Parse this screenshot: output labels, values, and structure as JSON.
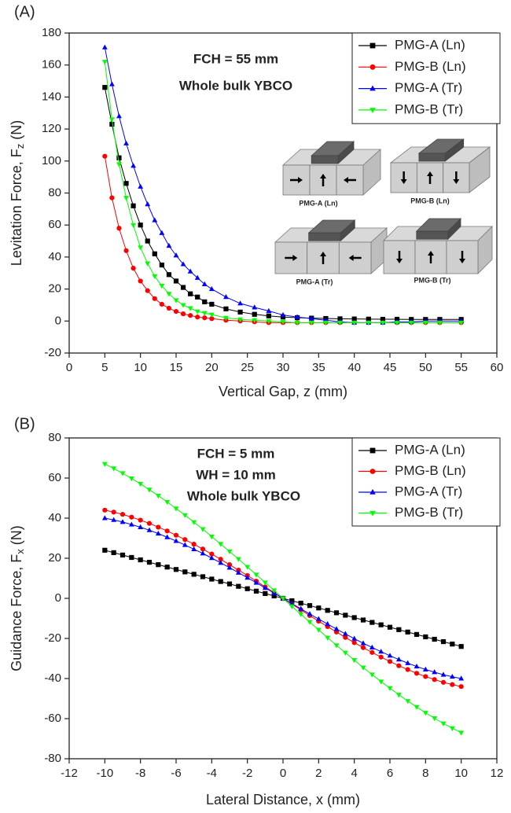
{
  "chart_data": [
    {
      "type": "line",
      "panel_label": "(A)",
      "xlabel": "Vertical Gap, z (mm)",
      "ylabel": {
        "text": "Levitation Force, F",
        "subscript": "z",
        "suffix": " (N)"
      },
      "xlim": [
        0,
        60
      ],
      "xticks": [
        0,
        5,
        10,
        15,
        20,
        25,
        30,
        35,
        40,
        45,
        50,
        55,
        60
      ],
      "ylim": [
        -20,
        180
      ],
      "yticks": [
        -20,
        0,
        20,
        40,
        60,
        80,
        100,
        120,
        140,
        160,
        180
      ],
      "legend": "upper right",
      "x": [
        5,
        6,
        7,
        8,
        9,
        10,
        11,
        12,
        13,
        14,
        15,
        16,
        17,
        18,
        19,
        20,
        22,
        24,
        26,
        28,
        30,
        32,
        34,
        36,
        38,
        40,
        42,
        44,
        46,
        48,
        50,
        52,
        55
      ],
      "series": [
        {
          "name": "PMG-A (Ln)",
          "color": "#000000",
          "marker": "square",
          "values": [
            146,
            123,
            102,
            86,
            72,
            60,
            50,
            42,
            35,
            29,
            25,
            21,
            17,
            15,
            12,
            10.5,
            7.6,
            5.6,
            4.2,
            3.2,
            2.5,
            2.1,
            1.8,
            1.6,
            1.4,
            1.3,
            1.2,
            1.1,
            1.1,
            1,
            1,
            1,
            1
          ]
        },
        {
          "name": "PMG-B (Ln)",
          "color": "#ff0000",
          "marker": "circle",
          "values": [
            103,
            77,
            58,
            44,
            33,
            25,
            19,
            14,
            10.5,
            8,
            6,
            4.5,
            3.5,
            2.5,
            2,
            1.5,
            0.5,
            0,
            -0.5,
            -1,
            -1,
            -1,
            -1,
            -1,
            -1,
            -1,
            -1,
            -1,
            -1,
            -1,
            -1,
            -1,
            -1
          ]
        },
        {
          "name": "PMG-A (Tr)",
          "color": "#0000ff",
          "marker": "triangle-up",
          "values": [
            171,
            148,
            128,
            111,
            97,
            84,
            73,
            63,
            55,
            47,
            41,
            35.5,
            31,
            27,
            23,
            20,
            15,
            11,
            8.5,
            6.3,
            3.8,
            2.5,
            1.5,
            0.5,
            -0.5,
            -1,
            -1,
            -1,
            -0.5,
            -0.5,
            0,
            0,
            0
          ]
        },
        {
          "name": "PMG-B (Tr)",
          "color": "#00ff00",
          "marker": "triangle-down",
          "values": [
            162,
            126,
            98,
            77,
            60,
            46,
            36,
            28,
            22,
            17,
            13,
            10,
            8,
            6,
            5,
            4,
            2,
            1,
            0.5,
            0,
            -0.5,
            -1,
            -1,
            -1,
            -1,
            -1,
            -1,
            -1,
            -1,
            -1,
            -1,
            -1,
            -1
          ]
        }
      ],
      "annotations": [
        {
          "text": "FCH = 55 mm",
          "color": "#ff0000"
        },
        {
          "text": "Whole bulk YBCO",
          "color": "#0000ff"
        }
      ],
      "inset_labels": [
        "PMG-A (Ln)",
        "PMG-B (Ln)",
        "PMG-A (Tr)",
        "PMG-B (Tr)"
      ]
    },
    {
      "type": "line",
      "panel_label": "(B)",
      "xlabel": "Lateral Distance, x (mm)",
      "ylabel": {
        "text": "Guidance Force, F",
        "subscript": "x",
        "suffix": " (N)"
      },
      "xlim": [
        -12,
        12
      ],
      "xticks": [
        -12,
        -10,
        -8,
        -6,
        -4,
        -2,
        0,
        2,
        4,
        6,
        8,
        10,
        12
      ],
      "ylim": [
        -80,
        80
      ],
      "yticks": [
        -80,
        -60,
        -40,
        -20,
        0,
        20,
        40,
        60,
        80
      ],
      "legend": "upper right",
      "x": [
        -10,
        -9.5,
        -9,
        -8.5,
        -8,
        -7.5,
        -7,
        -6.5,
        -6,
        -5.5,
        -5,
        -4.5,
        -4,
        -3.5,
        -3,
        -2.5,
        -2,
        -1.5,
        -1,
        -0.5,
        0,
        0.5,
        1,
        1.5,
        2,
        2.5,
        3,
        3.5,
        4,
        4.5,
        5,
        5.5,
        6,
        6.5,
        7,
        7.5,
        8,
        8.5,
        9,
        9.5,
        10
      ],
      "series": [
        {
          "name": "PMG-A (Ln)",
          "color": "#000000",
          "marker": "square",
          "values": [
            24,
            22.8,
            21.6,
            20.4,
            19.2,
            18,
            16.8,
            15.6,
            14.4,
            13.2,
            12,
            10.8,
            9.6,
            8.4,
            7.2,
            6,
            4.8,
            3.6,
            2.4,
            1.2,
            0,
            -1.2,
            -2.4,
            -3.6,
            -4.8,
            -6,
            -7.2,
            -8.4,
            -9.6,
            -10.8,
            -12,
            -13.2,
            -14.4,
            -15.6,
            -16.8,
            -18,
            -19.2,
            -20.4,
            -21.6,
            -22.8,
            -24
          ]
        },
        {
          "name": "PMG-B (Ln)",
          "color": "#ff0000",
          "marker": "circle",
          "values": [
            44,
            43,
            41.9,
            40.5,
            39,
            37.4,
            35.5,
            33.6,
            31.5,
            29.3,
            27,
            24.6,
            22.1,
            19.5,
            16.8,
            14.1,
            11.4,
            8.6,
            5.7,
            2.9,
            0,
            -2.9,
            -5.7,
            -8.6,
            -11.4,
            -14.1,
            -16.8,
            -19.5,
            -22.1,
            -24.6,
            -27,
            -29.3,
            -31.5,
            -33.6,
            -35.5,
            -37.4,
            -39,
            -40.5,
            -41.9,
            -43,
            -44
          ]
        },
        {
          "name": "PMG-A (Tr)",
          "color": "#0000ff",
          "marker": "triangle-up",
          "values": [
            40,
            39.1,
            38.1,
            36.8,
            35.5,
            34,
            32.3,
            30.5,
            28.6,
            26.6,
            24.5,
            22.4,
            20.1,
            17.7,
            15.3,
            12.8,
            10.3,
            7.8,
            5.2,
            2.6,
            0,
            -2.6,
            -5.2,
            -7.8,
            -10.3,
            -12.8,
            -15.3,
            -17.7,
            -20.1,
            -22.4,
            -24.5,
            -26.6,
            -28.6,
            -30.5,
            -32.3,
            -34,
            -35.5,
            -36.8,
            -38.1,
            -39.1,
            -40
          ]
        },
        {
          "name": "PMG-B (Tr)",
          "color": "#00ff00",
          "marker": "triangle-down",
          "values": [
            67,
            64.8,
            62.4,
            59.8,
            57.1,
            54.2,
            51.2,
            48.1,
            44.8,
            41.5,
            38,
            34.5,
            30.8,
            27.1,
            23.4,
            19.6,
            15.7,
            11.8,
            7.9,
            4,
            0,
            -4,
            -7.9,
            -11.8,
            -15.7,
            -19.6,
            -23.4,
            -27.1,
            -30.8,
            -34.5,
            -38,
            -41.5,
            -44.8,
            -48.1,
            -51.2,
            -54.2,
            -57.1,
            -59.8,
            -62.4,
            -64.8,
            -67
          ]
        }
      ],
      "annotations": [
        {
          "text": "FCH = 5 mm",
          "color": "#ff0000"
        },
        {
          "text": "WH = 10 mm",
          "color": "#ff0000"
        },
        {
          "text": "Whole bulk YBCO",
          "color": "#0000ff"
        }
      ]
    }
  ]
}
